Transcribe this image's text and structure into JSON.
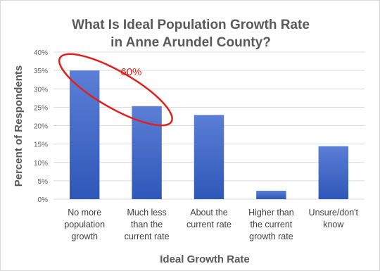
{
  "chart_data": {
    "type": "bar",
    "title_line1": "What Is Ideal Population Growth Rate",
    "title_line2": "in Anne Arundel County?",
    "xlabel": "Ideal Growth Rate",
    "ylabel": "Percent of Respondents",
    "ylim": [
      0,
      40
    ],
    "yticks": [
      "0%",
      "5%",
      "10%",
      "15%",
      "20%",
      "25%",
      "30%",
      "35%",
      "40%"
    ],
    "categories": [
      [
        "No more",
        "population",
        "growth"
      ],
      [
        "Much less",
        "than the",
        "current rate"
      ],
      [
        "About the",
        "current rate"
      ],
      [
        "Higher than",
        "the current",
        "growth rate"
      ],
      [
        "Unsure/don't",
        "know"
      ]
    ],
    "values": [
      35,
      25.3,
      22.9,
      2.3,
      14.4
    ],
    "grid": true,
    "bar_color_top": "#5b7fd6",
    "bar_color_bottom": "#2f57b8",
    "annotation": {
      "text": "60%",
      "color": "#e0201b",
      "encloses_categories": [
        0,
        1
      ]
    }
  }
}
